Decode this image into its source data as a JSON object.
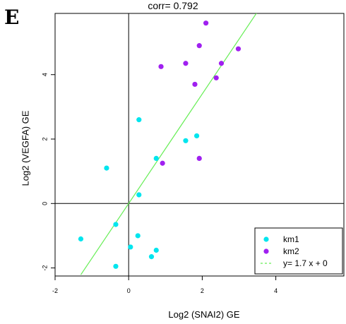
{
  "panel_label": "E",
  "chart_data": {
    "type": "scatter",
    "title": "corr= 0.792",
    "xlabel": "Log2 (SNAI2) GE",
    "ylabel": "Log2 (VEGFA) GE",
    "xlim": [
      -2.0,
      5.85
    ],
    "ylim": [
      -2.25,
      5.9
    ],
    "xticks": [
      -2,
      0,
      2,
      4
    ],
    "yticks": [
      -2,
      0,
      2,
      4
    ],
    "xtick_labels": [
      "-2",
      "0",
      "2",
      "4"
    ],
    "ytick_labels": [
      "-2",
      "0",
      "2",
      "4"
    ],
    "grid": false,
    "reference_lines": {
      "x": 0,
      "y": 0
    },
    "legend_position": "bottom-right",
    "series": [
      {
        "name": "km1",
        "color": "#00E5EE",
        "points": [
          {
            "x": -1.3,
            "y": -1.1
          },
          {
            "x": -0.6,
            "y": 1.1
          },
          {
            "x": -0.35,
            "y": -0.65
          },
          {
            "x": -0.35,
            "y": -1.95
          },
          {
            "x": 0.05,
            "y": -1.35
          },
          {
            "x": 0.25,
            "y": -1.0
          },
          {
            "x": 0.28,
            "y": 0.27
          },
          {
            "x": 0.28,
            "y": 2.6
          },
          {
            "x": 0.62,
            "y": -1.65
          },
          {
            "x": 0.75,
            "y": -1.45
          },
          {
            "x": 0.75,
            "y": 1.4
          },
          {
            "x": 1.55,
            "y": 1.95
          },
          {
            "x": 1.85,
            "y": 2.1
          }
        ]
      },
      {
        "name": "km2",
        "color": "#A020F0",
        "points": [
          {
            "x": 0.88,
            "y": 4.25
          },
          {
            "x": 0.92,
            "y": 1.25
          },
          {
            "x": 1.55,
            "y": 4.35
          },
          {
            "x": 1.8,
            "y": 3.7
          },
          {
            "x": 1.92,
            "y": 4.9
          },
          {
            "x": 1.92,
            "y": 1.4
          },
          {
            "x": 2.1,
            "y": 5.6
          },
          {
            "x": 2.38,
            "y": 3.9
          },
          {
            "x": 2.52,
            "y": 4.35
          },
          {
            "x": 2.98,
            "y": 4.8
          }
        ]
      }
    ],
    "fit_line": {
      "label": "y= 1.7  x +  0",
      "slope": 1.7,
      "intercept": 0,
      "color": "#66EE55",
      "style": "dashed"
    }
  }
}
